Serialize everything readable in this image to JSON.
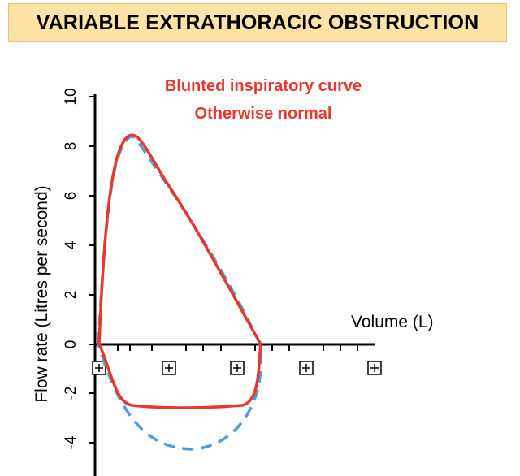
{
  "title": "VARIABLE EXTRATHORACIC OBSTRUCTION",
  "annotation": {
    "line1": "Blunted inspiratory curve",
    "line2": "Otherwise normal",
    "color": "#e8382c"
  },
  "chart_data": {
    "type": "line",
    "xlabel": "Volume (L)",
    "ylabel": "Flow rate (Litres per second)",
    "yticks": [
      "-4",
      "-2",
      "0",
      "2",
      "4",
      "6",
      "8",
      "10"
    ],
    "xtick_marker": "⊞",
    "series": [
      {
        "style": "solid",
        "color": "#e8382c"
      },
      {
        "style": "dashed",
        "color": "#4a9fe0"
      }
    ]
  }
}
